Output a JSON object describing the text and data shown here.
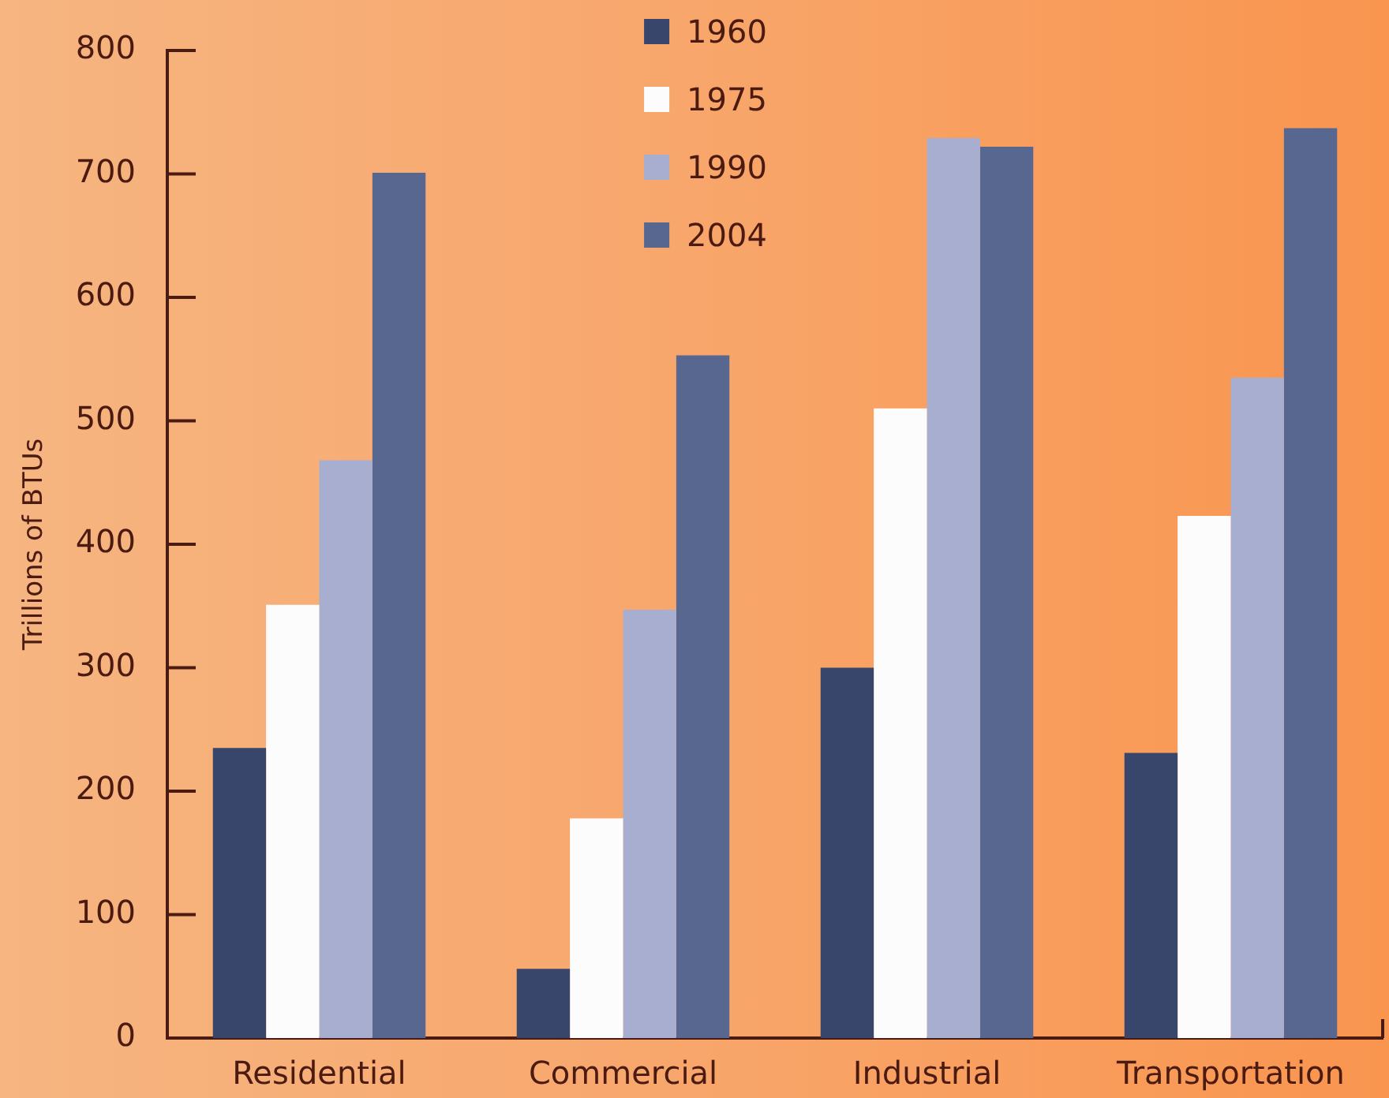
{
  "chart_data": {
    "type": "bar",
    "ylabel": "Trillions of BTUs",
    "categories": [
      "Residential",
      "Commercial",
      "Industrial",
      "Transportation"
    ],
    "series": [
      {
        "name": "1960",
        "color": "#39466c",
        "values": [
          235,
          56,
          300,
          231
        ]
      },
      {
        "name": "1975",
        "color": "#fdfcfc",
        "values": [
          351,
          178,
          510,
          423
        ]
      },
      {
        "name": "1990",
        "color": "#a7aed0",
        "values": [
          468,
          347,
          729,
          535
        ]
      },
      {
        "name": "2004",
        "color": "#57678f",
        "values": [
          701,
          553,
          722,
          737
        ]
      }
    ],
    "ylim": [
      0,
      800
    ],
    "yticks": [
      0,
      100,
      200,
      300,
      400,
      500,
      600,
      700,
      800
    ],
    "legend": "top"
  }
}
